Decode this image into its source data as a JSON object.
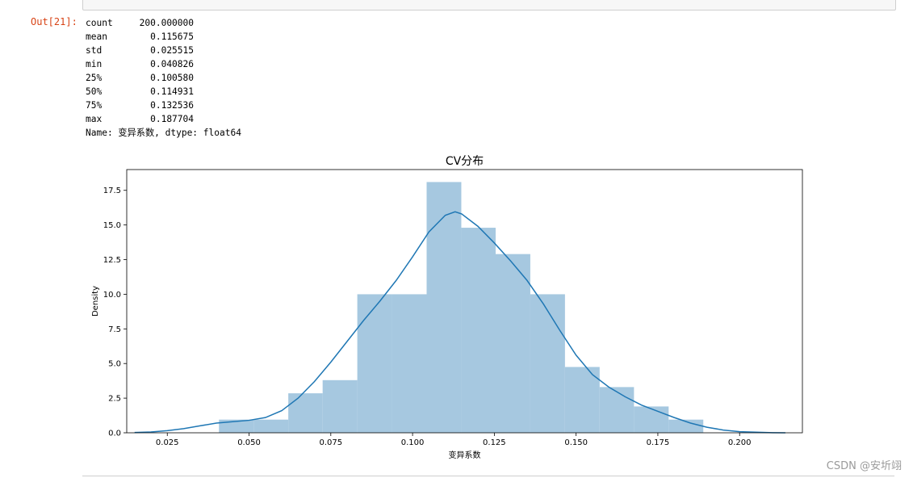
{
  "cell": {
    "prompt": "Out[21]:",
    "stats": [
      {
        "key": "count",
        "value": "200.000000"
      },
      {
        "key": "mean",
        "value": "0.115675"
      },
      {
        "key": "std",
        "value": "0.025515"
      },
      {
        "key": "min",
        "value": "0.040826"
      },
      {
        "key": "25%",
        "value": "0.100580"
      },
      {
        "key": "50%",
        "value": "0.114931"
      },
      {
        "key": "75%",
        "value": "0.132536"
      },
      {
        "key": "max",
        "value": "0.187704"
      }
    ],
    "name_line": "Name: 变异系数, dtype: float64"
  },
  "chart_data": {
    "type": "bar",
    "title": "CV分布",
    "xlabel": "变异系数",
    "ylabel": "Density",
    "xlim": [
      0.0126,
      0.2192
    ],
    "ylim": [
      0,
      19.0
    ],
    "xticks": [
      0.025,
      0.05,
      0.075,
      0.1,
      0.125,
      0.15,
      0.175,
      0.2
    ],
    "xtick_labels": [
      "0.025",
      "0.050",
      "0.075",
      "0.100",
      "0.125",
      "0.150",
      "0.175",
      "0.200"
    ],
    "yticks": [
      0.0,
      2.5,
      5.0,
      7.5,
      10.0,
      12.5,
      15.0,
      17.5
    ],
    "ytick_labels": [
      "0.0",
      "2.5",
      "5.0",
      "7.5",
      "10.0",
      "12.5",
      "15.0",
      "17.5"
    ],
    "bin_edges": [
      0.0408,
      0.0514,
      0.062,
      0.0725,
      0.0831,
      0.0937,
      0.1043,
      0.1149,
      0.1254,
      0.136,
      0.1466,
      0.1572,
      0.1677,
      0.1783,
      0.1889
    ],
    "hist_values": [
      0.95,
      0.95,
      2.85,
      3.8,
      10.0,
      10.0,
      18.1,
      14.8,
      12.9,
      10.0,
      4.75,
      3.3,
      1.9,
      0.95
    ],
    "hist_color": "#a6c8e0",
    "kde": {
      "color": "#1f77b4",
      "x": [
        0.015,
        0.02,
        0.025,
        0.03,
        0.035,
        0.04,
        0.045,
        0.05,
        0.055,
        0.06,
        0.065,
        0.07,
        0.075,
        0.08,
        0.085,
        0.09,
        0.095,
        0.1,
        0.105,
        0.11,
        0.113,
        0.115,
        0.12,
        0.125,
        0.13,
        0.135,
        0.14,
        0.145,
        0.15,
        0.155,
        0.16,
        0.165,
        0.17,
        0.175,
        0.18,
        0.185,
        0.19,
        0.195,
        0.2,
        0.205,
        0.21,
        0.214
      ],
      "y": [
        0.02,
        0.06,
        0.15,
        0.3,
        0.5,
        0.7,
        0.8,
        0.9,
        1.1,
        1.6,
        2.5,
        3.7,
        5.1,
        6.6,
        8.1,
        9.5,
        11.0,
        12.7,
        14.5,
        15.7,
        15.95,
        15.8,
        14.9,
        13.7,
        12.4,
        11.0,
        9.3,
        7.4,
        5.6,
        4.2,
        3.3,
        2.6,
        2.0,
        1.55,
        1.1,
        0.7,
        0.4,
        0.2,
        0.08,
        0.04,
        0.01,
        0.0
      ]
    }
  },
  "watermark": "CSDN @安圻翊"
}
